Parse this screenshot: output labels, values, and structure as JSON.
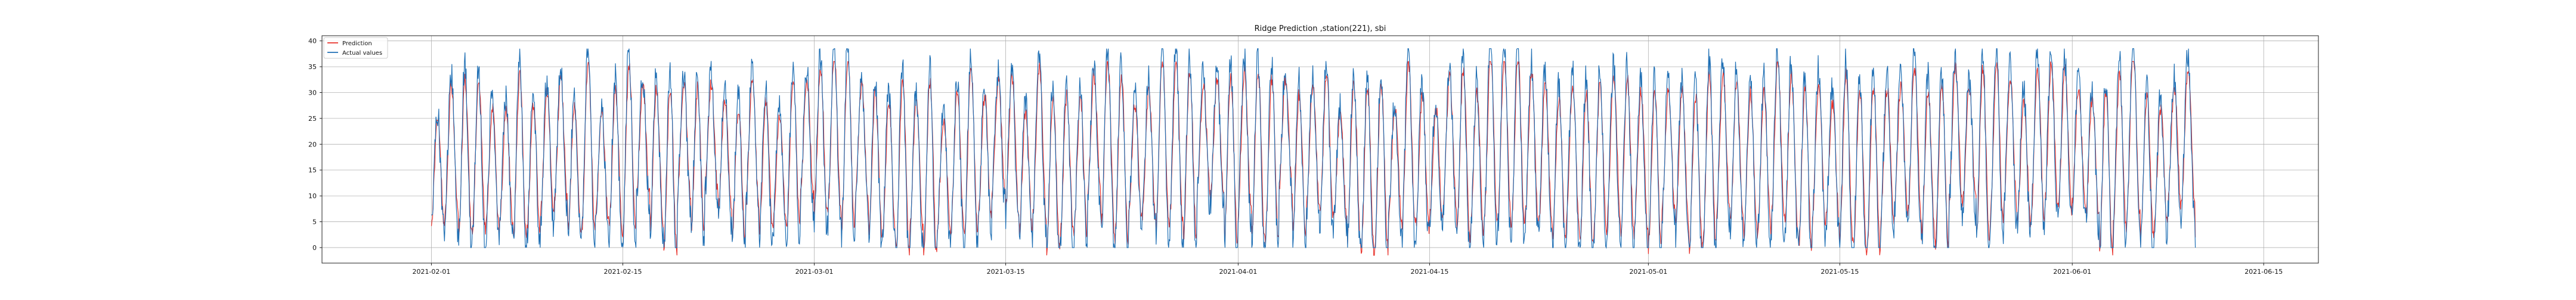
{
  "chart_data": {
    "type": "line",
    "title": "Ridge Prediction ,station(221), sbi",
    "xlabel": "",
    "ylabel": "",
    "x_start": "2021-02-01",
    "x_end": "2021-06-10",
    "xlim": [
      "2021-01-24",
      "2021-06-19"
    ],
    "ylim": [
      -3,
      41
    ],
    "x_ticks": [
      "2021-02-01",
      "2021-02-15",
      "2021-03-01",
      "2021-03-15",
      "2021-04-01",
      "2021-04-15",
      "2021-05-01",
      "2021-05-15",
      "2021-06-01",
      "2021-06-15"
    ],
    "y_ticks": [
      0,
      5,
      10,
      15,
      20,
      25,
      30,
      35,
      40
    ],
    "grid": true,
    "legend_position": "top-left",
    "series": [
      {
        "name": "Prediction",
        "color": "#e8312a"
      },
      {
        "name": "Actual values",
        "color": "#1f6fb4"
      }
    ]
  }
}
